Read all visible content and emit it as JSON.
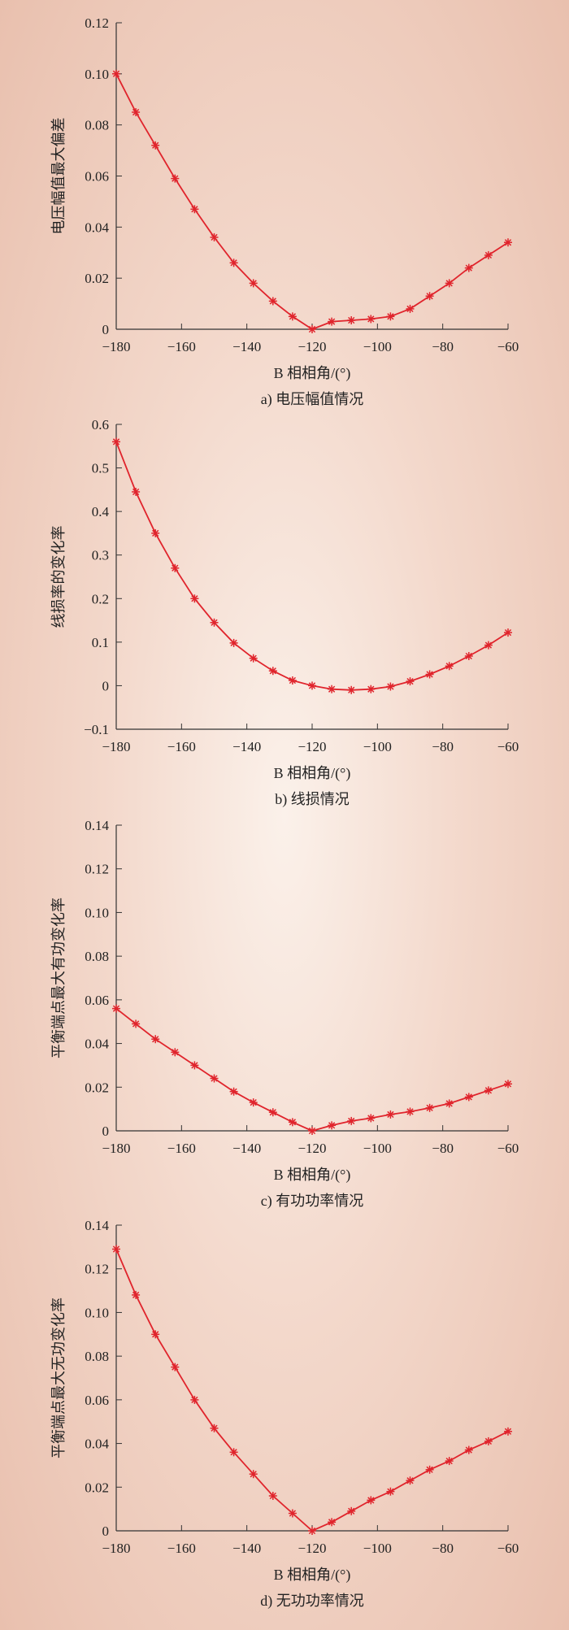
{
  "colors": {
    "line": "#e0242c",
    "axis": "#333333",
    "text": "#222222"
  },
  "chart_data": [
    {
      "type": "line",
      "caption": "a) 电压幅值情况",
      "xlabel": "B 相相角/(°)",
      "ylabel": "电压幅值最大偏差",
      "xlim": [
        -180,
        -60
      ],
      "ylim": [
        0,
        0.12
      ],
      "xticks": [
        -180,
        -160,
        -140,
        -120,
        -100,
        -80,
        -60
      ],
      "xtick_labels": [
        "−180",
        "−160",
        "−140",
        "−120",
        "−100",
        "−80",
        "−60"
      ],
      "yticks": [
        0,
        0.02,
        0.04,
        0.06,
        0.08,
        0.1,
        0.12
      ],
      "ytick_labels": [
        "0",
        "0.02",
        "0.04",
        "0.06",
        "0.08",
        "0.10",
        "0.12"
      ],
      "series": [
        {
          "x": [
            -180,
            -174,
            -168,
            -162,
            -156,
            -150,
            -144,
            -138,
            -132,
            -126,
            -120,
            -114,
            -108,
            -102,
            -96,
            -90,
            -84,
            -78,
            -72,
            -66,
            -60
          ],
          "y": [
            0.1,
            0.085,
            0.072,
            0.059,
            0.047,
            0.036,
            0.026,
            0.018,
            0.011,
            0.005,
            0.0,
            0.003,
            0.0035,
            0.004,
            0.005,
            0.008,
            0.013,
            0.018,
            0.024,
            0.029,
            0.034
          ]
        }
      ]
    },
    {
      "type": "line",
      "caption": "b) 线损情况",
      "xlabel": "B 相相角/(°)",
      "ylabel": "线损率的变化率",
      "xlim": [
        -180,
        -60
      ],
      "ylim": [
        -0.1,
        0.6
      ],
      "xticks": [
        -180,
        -160,
        -140,
        -120,
        -100,
        -80,
        -60
      ],
      "xtick_labels": [
        "−180",
        "−160",
        "−140",
        "−120",
        "−100",
        "−80",
        "−60"
      ],
      "yticks": [
        -0.1,
        0,
        0.1,
        0.2,
        0.3,
        0.4,
        0.5,
        0.6
      ],
      "ytick_labels": [
        "−0.1",
        "0",
        "0.1",
        "0.2",
        "0.3",
        "0.4",
        "0.5",
        "0.6"
      ],
      "series": [
        {
          "x": [
            -180,
            -174,
            -168,
            -162,
            -156,
            -150,
            -144,
            -138,
            -132,
            -126,
            -120,
            -114,
            -108,
            -102,
            -96,
            -90,
            -84,
            -78,
            -72,
            -66,
            -60
          ],
          "y": [
            0.56,
            0.445,
            0.35,
            0.27,
            0.2,
            0.145,
            0.098,
            0.063,
            0.034,
            0.012,
            0.0,
            -0.008,
            -0.01,
            -0.008,
            -0.002,
            0.01,
            0.026,
            0.045,
            0.068,
            0.093,
            0.122
          ]
        }
      ]
    },
    {
      "type": "line",
      "caption": "c) 有功功率情况",
      "xlabel": "B 相相角/(°)",
      "ylabel": "平衡端点最大有功变化率",
      "xlim": [
        -180,
        -60
      ],
      "ylim": [
        0,
        0.14
      ],
      "xticks": [
        -180,
        -160,
        -140,
        -120,
        -100,
        -80,
        -60
      ],
      "xtick_labels": [
        "−180",
        "−160",
        "−140",
        "−120",
        "−100",
        "−80",
        "−60"
      ],
      "yticks": [
        0,
        0.02,
        0.04,
        0.06,
        0.08,
        0.1,
        0.12,
        0.14
      ],
      "ytick_labels": [
        "0",
        "0.02",
        "0.04",
        "0.06",
        "0.08",
        "0.10",
        "0.12",
        "0.14"
      ],
      "series": [
        {
          "x": [
            -180,
            -174,
            -168,
            -162,
            -156,
            -150,
            -144,
            -138,
            -132,
            -126,
            -120,
            -114,
            -108,
            -102,
            -96,
            -90,
            -84,
            -78,
            -72,
            -66,
            -60
          ],
          "y": [
            0.056,
            0.049,
            0.042,
            0.036,
            0.03,
            0.024,
            0.018,
            0.013,
            0.0085,
            0.004,
            0.0,
            0.0025,
            0.0045,
            0.0058,
            0.0075,
            0.0088,
            0.0105,
            0.0125,
            0.0155,
            0.0185,
            0.0215
          ]
        }
      ]
    },
    {
      "type": "line",
      "caption": "d) 无功功率情况",
      "xlabel": "B 相相角/(°)",
      "ylabel": "平衡端点最大无功变化率",
      "xlim": [
        -180,
        -60
      ],
      "ylim": [
        0,
        0.14
      ],
      "xticks": [
        -180,
        -160,
        -140,
        -120,
        -100,
        -80,
        -60
      ],
      "xtick_labels": [
        "−180",
        "−160",
        "−140",
        "−120",
        "−100",
        "−80",
        "−60"
      ],
      "yticks": [
        0,
        0.02,
        0.04,
        0.06,
        0.08,
        0.1,
        0.12,
        0.14
      ],
      "ytick_labels": [
        "0",
        "0.02",
        "0.04",
        "0.06",
        "0.08",
        "0.10",
        "0.12",
        "0.14"
      ],
      "series": [
        {
          "x": [
            -180,
            -174,
            -168,
            -162,
            -156,
            -150,
            -144,
            -138,
            -132,
            -126,
            -120,
            -114,
            -108,
            -102,
            -96,
            -90,
            -84,
            -78,
            -72,
            -66,
            -60
          ],
          "y": [
            0.129,
            0.108,
            0.09,
            0.075,
            0.06,
            0.047,
            0.036,
            0.026,
            0.016,
            0.008,
            0.0,
            0.004,
            0.009,
            0.014,
            0.018,
            0.023,
            0.028,
            0.032,
            0.037,
            0.041,
            0.0455
          ]
        }
      ]
    }
  ]
}
